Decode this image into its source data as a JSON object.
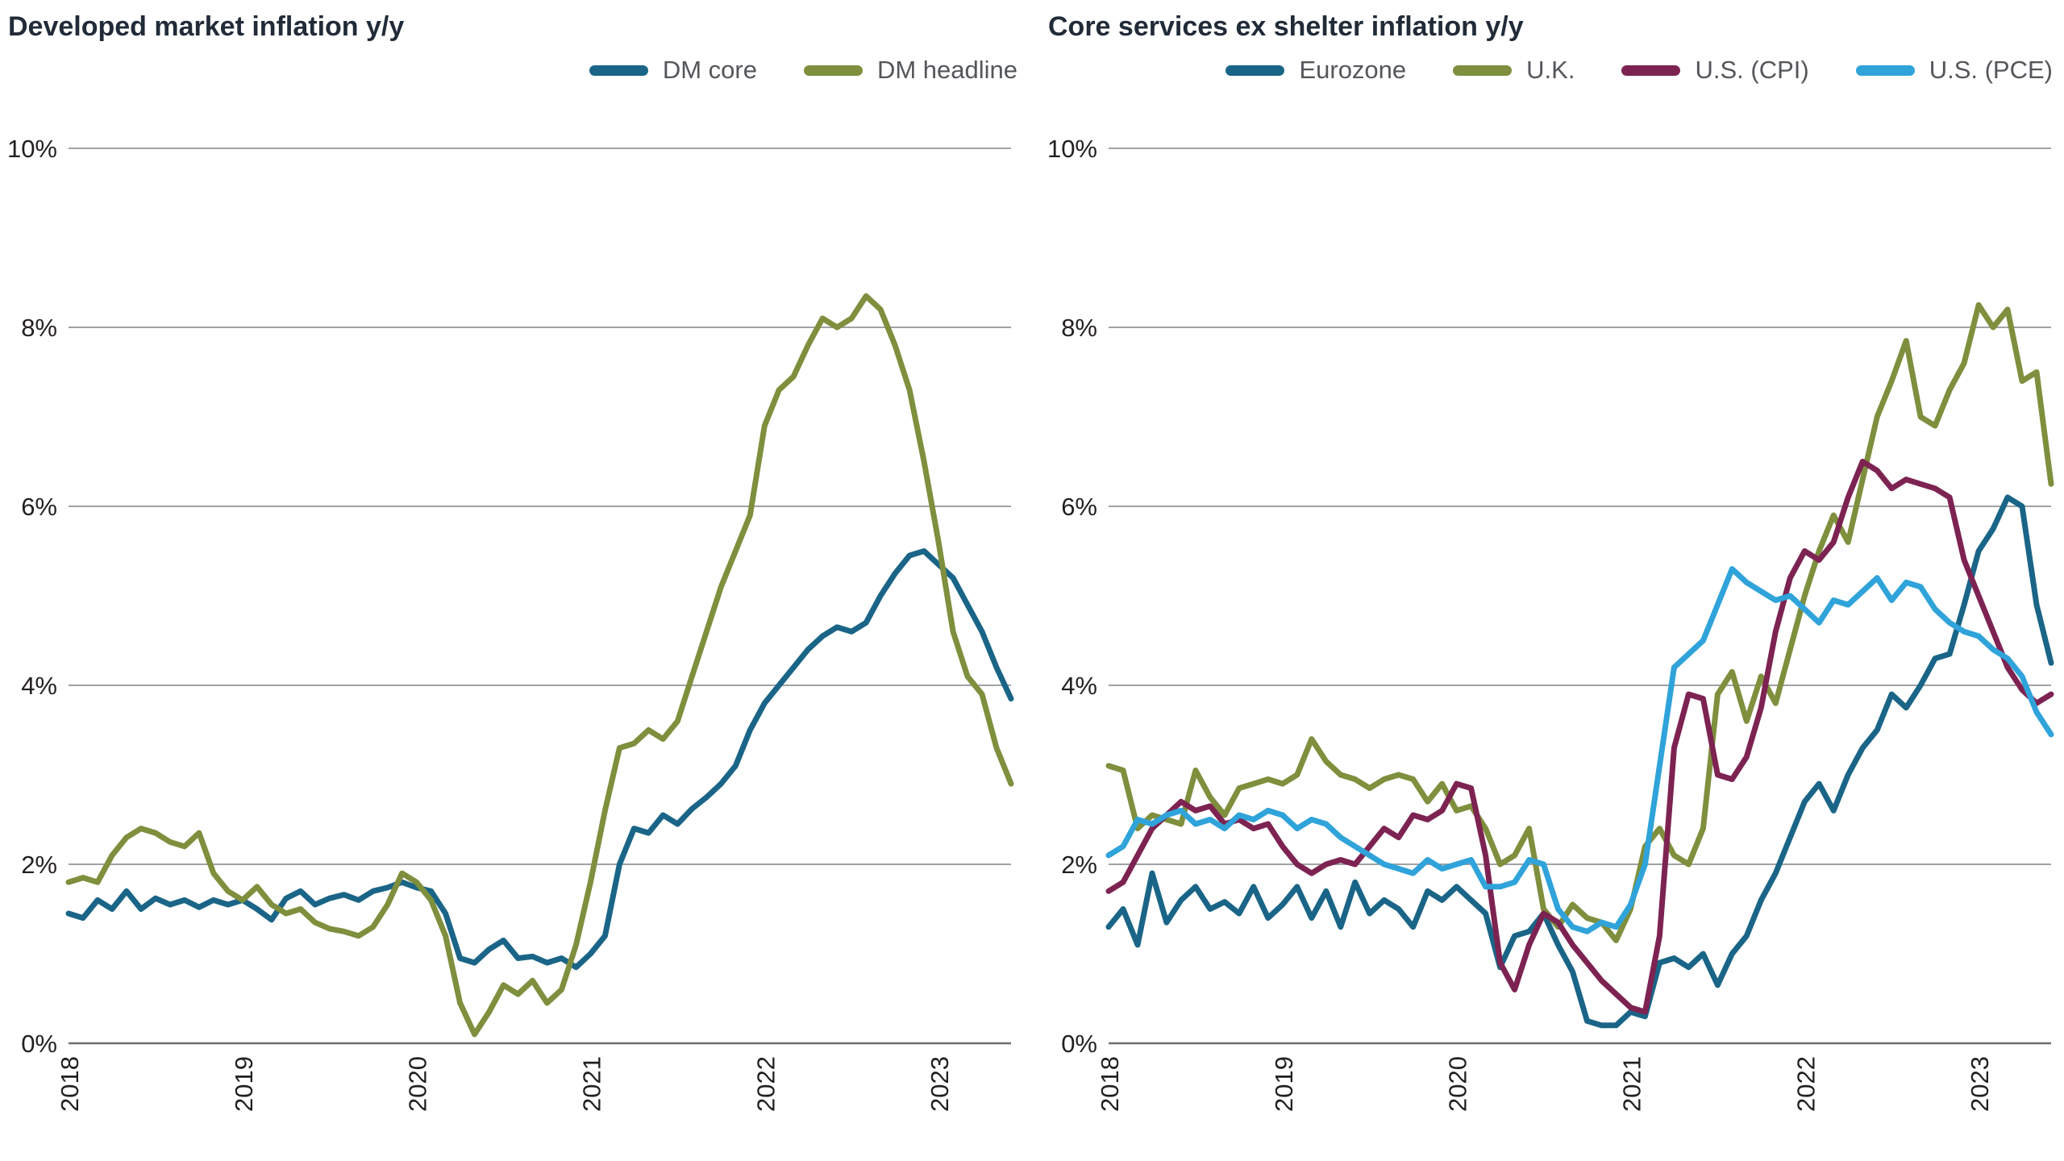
{
  "page_background": "#ffffff",
  "chart_data": [
    {
      "id": "dm-inflation",
      "type": "line",
      "title": "Developed market inflation y/y",
      "grid": true,
      "legend_position": "top-right",
      "y_axis": {
        "min": 0,
        "max": 10,
        "ticks": [
          {
            "value": 10,
            "label": "10%"
          },
          {
            "value": 8,
            "label": "8%"
          },
          {
            "value": 6,
            "label": "6%"
          },
          {
            "value": 4,
            "label": "4%"
          },
          {
            "value": 2,
            "label": "2%"
          },
          {
            "value": 0,
            "label": "0%"
          }
        ]
      },
      "x_axis": {
        "labels": [
          "2018",
          "2019",
          "2020",
          "2021",
          "2022",
          "2023"
        ],
        "month_positions": [
          0,
          12,
          24,
          36,
          48,
          60
        ],
        "start": "Jan 2018",
        "end": "Jun 2023"
      },
      "series": [
        {
          "name": "DM core",
          "color": "#1a6587",
          "values": [
            1.45,
            1.4,
            1.6,
            1.5,
            1.7,
            1.5,
            1.62,
            1.55,
            1.6,
            1.52,
            1.6,
            1.55,
            1.6,
            1.5,
            1.38,
            1.62,
            1.7,
            1.55,
            1.62,
            1.66,
            1.6,
            1.7,
            1.74,
            1.8,
            1.74,
            1.7,
            1.45,
            0.95,
            0.9,
            1.05,
            1.15,
            0.95,
            0.97,
            0.9,
            0.95,
            0.85,
            1.0,
            1.2,
            2.0,
            2.4,
            2.35,
            2.55,
            2.45,
            2.62,
            2.75,
            2.9,
            3.1,
            3.5,
            3.8,
            4.0,
            4.2,
            4.4,
            4.55,
            4.65,
            4.6,
            4.7,
            5.0,
            5.25,
            5.45,
            5.5,
            5.35,
            5.2,
            4.9,
            4.6,
            4.2,
            3.85
          ]
        },
        {
          "name": "DM headline",
          "color": "#7e8f3d",
          "values": [
            1.8,
            1.85,
            1.8,
            2.1,
            2.3,
            2.4,
            2.35,
            2.25,
            2.2,
            2.35,
            1.9,
            1.7,
            1.6,
            1.75,
            1.55,
            1.45,
            1.5,
            1.35,
            1.28,
            1.25,
            1.2,
            1.3,
            1.55,
            1.9,
            1.8,
            1.6,
            1.2,
            0.45,
            0.1,
            0.35,
            0.65,
            0.55,
            0.7,
            0.45,
            0.6,
            1.1,
            1.8,
            2.6,
            3.3,
            3.35,
            3.5,
            3.4,
            3.6,
            4.1,
            4.6,
            5.1,
            5.5,
            5.9,
            6.9,
            7.3,
            7.45,
            7.8,
            8.1,
            8.0,
            8.1,
            8.35,
            8.2,
            7.8,
            7.3,
            6.5,
            5.6,
            4.6,
            4.1,
            3.9,
            3.3,
            2.9
          ]
        }
      ]
    },
    {
      "id": "core-services-ex-shelter",
      "type": "line",
      "title": "Core services ex shelter inflation y/y",
      "grid": true,
      "legend_position": "top-right",
      "y_axis": {
        "min": 0,
        "max": 10,
        "ticks": [
          {
            "value": 10,
            "label": "10%"
          },
          {
            "value": 8,
            "label": "8%"
          },
          {
            "value": 6,
            "label": "6%"
          },
          {
            "value": 4,
            "label": "4%"
          },
          {
            "value": 2,
            "label": "2%"
          },
          {
            "value": 0,
            "label": "0%"
          }
        ]
      },
      "x_axis": {
        "labels": [
          "2018",
          "2019",
          "2020",
          "2021",
          "2022",
          "2023"
        ],
        "month_positions": [
          0,
          12,
          24,
          36,
          48,
          60
        ],
        "start": "Jan 2018",
        "end": "Jun 2023"
      },
      "series": [
        {
          "name": "Eurozone",
          "color": "#1a6587",
          "values": [
            1.3,
            1.5,
            1.1,
            1.9,
            1.35,
            1.6,
            1.75,
            1.5,
            1.58,
            1.45,
            1.75,
            1.4,
            1.55,
            1.75,
            1.4,
            1.7,
            1.3,
            1.8,
            1.45,
            1.6,
            1.5,
            1.3,
            1.7,
            1.6,
            1.75,
            1.6,
            1.45,
            0.85,
            1.2,
            1.25,
            1.45,
            1.1,
            0.8,
            0.25,
            0.2,
            0.2,
            0.35,
            0.3,
            0.9,
            0.95,
            0.85,
            1.0,
            0.65,
            1.0,
            1.2,
            1.6,
            1.9,
            2.3,
            2.7,
            2.9,
            2.6,
            3.0,
            3.3,
            3.5,
            3.9,
            3.75,
            4.0,
            4.3,
            4.35,
            4.9,
            5.5,
            5.75,
            6.1,
            6.0,
            4.9,
            4.25
          ]
        },
        {
          "name": "U.K.",
          "color": "#7e8f3d",
          "values": [
            3.1,
            3.05,
            2.4,
            2.55,
            2.5,
            2.45,
            3.05,
            2.75,
            2.55,
            2.85,
            2.9,
            2.95,
            2.9,
            3.0,
            3.4,
            3.15,
            3.0,
            2.95,
            2.85,
            2.95,
            3.0,
            2.95,
            2.7,
            2.9,
            2.6,
            2.65,
            2.4,
            2.0,
            2.1,
            2.4,
            1.5,
            1.3,
            1.55,
            1.4,
            1.35,
            1.15,
            1.5,
            2.2,
            2.4,
            2.1,
            2.0,
            2.4,
            3.9,
            4.15,
            3.6,
            4.1,
            3.8,
            4.4,
            5.0,
            5.5,
            5.9,
            5.6,
            6.3,
            7.0,
            7.4,
            7.85,
            7.0,
            6.9,
            7.3,
            7.6,
            8.25,
            8.0,
            8.2,
            7.4,
            7.5,
            6.25
          ]
        },
        {
          "name": "U.S. (CPI)",
          "color": "#7d2352",
          "values": [
            1.7,
            1.8,
            2.1,
            2.4,
            2.55,
            2.7,
            2.6,
            2.65,
            2.45,
            2.5,
            2.4,
            2.45,
            2.2,
            2.0,
            1.9,
            2.0,
            2.05,
            2.0,
            2.2,
            2.4,
            2.3,
            2.55,
            2.5,
            2.6,
            2.9,
            2.85,
            2.1,
            0.9,
            0.6,
            1.1,
            1.45,
            1.35,
            1.1,
            0.9,
            0.7,
            0.55,
            0.4,
            0.35,
            1.2,
            3.3,
            3.9,
            3.85,
            3.0,
            2.95,
            3.2,
            3.75,
            4.6,
            5.2,
            5.5,
            5.4,
            5.6,
            6.1,
            6.5,
            6.4,
            6.2,
            6.3,
            6.25,
            6.2,
            6.1,
            5.4,
            5.0,
            4.6,
            4.2,
            3.95,
            3.8,
            3.9
          ]
        },
        {
          "name": "U.S. (PCE)",
          "color": "#2fa3da",
          "values": [
            2.1,
            2.2,
            2.5,
            2.45,
            2.55,
            2.6,
            2.45,
            2.5,
            2.4,
            2.55,
            2.5,
            2.6,
            2.55,
            2.4,
            2.5,
            2.45,
            2.3,
            2.2,
            2.1,
            2.0,
            1.95,
            1.9,
            2.05,
            1.95,
            2.0,
            2.05,
            1.75,
            1.75,
            1.8,
            2.05,
            2.0,
            1.5,
            1.3,
            1.25,
            1.35,
            1.3,
            1.55,
            2.0,
            3.1,
            4.2,
            4.35,
            4.5,
            4.9,
            5.3,
            5.15,
            5.05,
            4.95,
            5.0,
            4.85,
            4.7,
            4.95,
            4.9,
            5.05,
            5.2,
            4.95,
            5.15,
            5.1,
            4.85,
            4.7,
            4.6,
            4.55,
            4.4,
            4.3,
            4.1,
            3.7,
            3.45
          ]
        }
      ]
    }
  ]
}
